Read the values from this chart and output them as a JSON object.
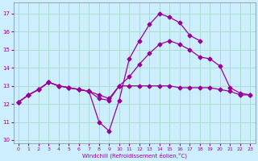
{
  "xlabel": "Windchill (Refroidissement éolien,°C)",
  "background_color": "#cceeff",
  "grid_color": "#aaddcc",
  "line_color": "#990099",
  "ylim": [
    9.8,
    17.6
  ],
  "xlim": [
    -0.5,
    23.5
  ],
  "yticks": [
    10,
    11,
    12,
    13,
    14,
    15,
    16,
    17
  ],
  "xticks": [
    0,
    1,
    2,
    3,
    4,
    5,
    6,
    7,
    8,
    9,
    10,
    11,
    12,
    13,
    14,
    15,
    16,
    17,
    18,
    19,
    20,
    21,
    22,
    23
  ],
  "line1_x": [
    0,
    1,
    2,
    3,
    4,
    5,
    6,
    7,
    8,
    9,
    10,
    11,
    12,
    13,
    14,
    15,
    16,
    17,
    18,
    19,
    20,
    21,
    22,
    23
  ],
  "line1_y": [
    12.1,
    12.5,
    12.8,
    13.2,
    13.0,
    12.9,
    12.8,
    12.7,
    12.5,
    12.3,
    13.0,
    13.0,
    13.0,
    13.0,
    13.0,
    13.0,
    12.9,
    12.9,
    12.9,
    12.9,
    12.8,
    12.7,
    12.5,
    12.5
  ],
  "line2_x": [
    0,
    1,
    2,
    3,
    4,
    5,
    6,
    7,
    8,
    9,
    10,
    11,
    12,
    13,
    14,
    15,
    16,
    17,
    18,
    19,
    20,
    21,
    22,
    23
  ],
  "line2_y": [
    12.1,
    12.5,
    12.8,
    13.2,
    13.0,
    12.9,
    12.8,
    12.7,
    11.0,
    10.5,
    12.2,
    14.5,
    15.5,
    16.4,
    17.0,
    16.8,
    16.5,
    15.8,
    15.5,
    null,
    null,
    null,
    null,
    null
  ],
  "line3_x": [
    0,
    1,
    2,
    3,
    4,
    5,
    6,
    7,
    8,
    9,
    10,
    11,
    12,
    13,
    14,
    15,
    16,
    17,
    18,
    19,
    20,
    21,
    22,
    23
  ],
  "line3_y": [
    12.1,
    12.5,
    12.8,
    13.2,
    13.0,
    12.9,
    12.8,
    12.7,
    12.3,
    12.2,
    13.0,
    13.5,
    14.2,
    14.8,
    15.3,
    15.5,
    15.3,
    15.0,
    14.6,
    14.5,
    14.1,
    12.9,
    12.6,
    12.5
  ]
}
